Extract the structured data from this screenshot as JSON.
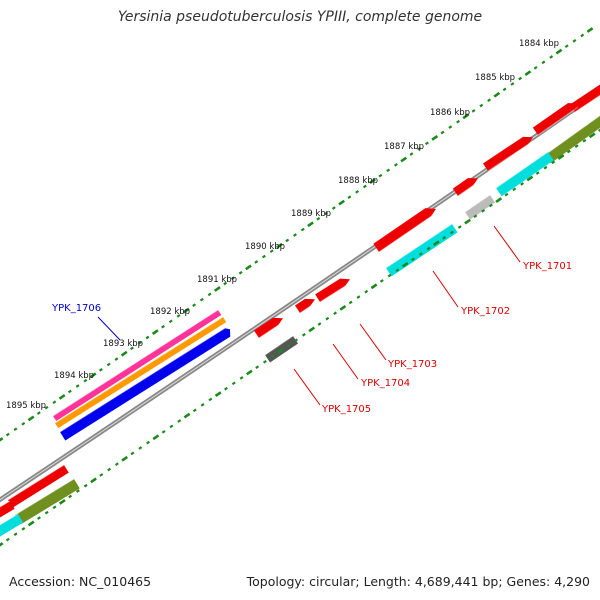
{
  "title": "Yersinia pseudotuberculosis YPIII, complete genome",
  "footer": {
    "accession": "Accession: NC_010465",
    "summary": "Topology: circular; Length: 4,689,441 bp; Genes: 4,290"
  },
  "colors": {
    "backbone": "#888888",
    "scale_dots": "#1a8a1a",
    "forward_gene": "#ee0000",
    "label_red": "#dd0000",
    "label_blue": "#0000cc",
    "cyan": "#00dddd",
    "olive": "#6f8f1f",
    "magenta": "#ff3399",
    "orange": "#ff9900",
    "blue": "#0000ee",
    "dark_gray": "#555555",
    "light_gray": "#bbbbbb"
  },
  "scale_labels": [
    "1884 kbp",
    "1885 kbp",
    "1886 kbp",
    "1887 kbp",
    "1888 kbp",
    "1889 kbp",
    "1890 kbp",
    "1891 kbp",
    "1892 kbp",
    "1893 kbp",
    "1894 kbp",
    "1895 kbp"
  ],
  "gene_labels": [
    {
      "text": "YPK_1701",
      "color": "red"
    },
    {
      "text": "YPK_1702",
      "color": "red"
    },
    {
      "text": "YPK_1703",
      "color": "red"
    },
    {
      "text": "YPK_1704",
      "color": "red"
    },
    {
      "text": "YPK_1705",
      "color": "red"
    },
    {
      "text": "YPK_1706",
      "color": "blue"
    }
  ]
}
